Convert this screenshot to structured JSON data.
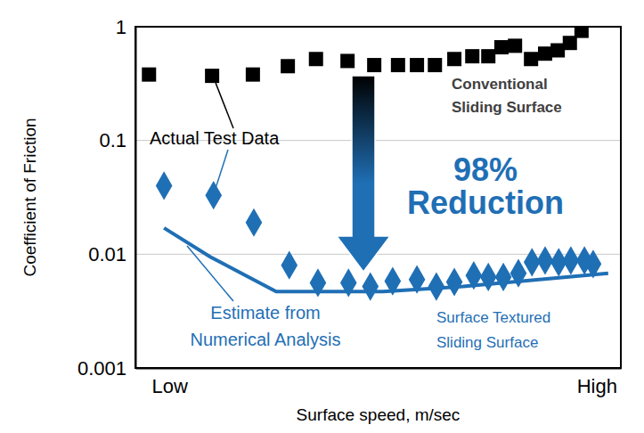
{
  "chart_data": {
    "type": "scatter",
    "x_label": "Surface speed, m/sec",
    "y_label": "Coefficient of Friction",
    "xlim": [
      0,
      100
    ],
    "xticks": [
      {
        "value": 7,
        "label": "Low"
      },
      {
        "value": 95,
        "label": "High"
      }
    ],
    "ylim": [
      0.001,
      1
    ],
    "yticks": [
      0.001,
      0.01,
      0.1,
      1
    ],
    "log": "y",
    "grid": true,
    "series": [
      {
        "type": "scatter",
        "color": "#000000",
        "marker": "square",
        "x": [
          2.8,
          15.8,
          24.2,
          31.4,
          37.2,
          43.7,
          49.2,
          54.1,
          58,
          61.7,
          65.7,
          69.4,
          72.7,
          75.4,
          78.2,
          81.5,
          84.4,
          87,
          89.5,
          91.9
        ],
        "values": [
          0.38,
          0.37,
          0.38,
          0.45,
          0.52,
          0.5,
          0.46,
          0.46,
          0.46,
          0.46,
          0.52,
          0.55,
          0.55,
          0.66,
          0.68,
          0.52,
          0.58,
          0.62,
          0.72,
          0.92
        ]
      },
      {
        "type": "scatter",
        "color": "#1f6fb5",
        "marker": "diamond",
        "x": [
          5.9,
          16.1,
          24.4,
          31.7,
          37.6,
          43.9,
          48.4,
          53,
          58,
          62,
          65.7,
          69.7,
          72.7,
          75.8,
          78.9,
          81.7,
          84.4,
          87.2,
          89.7,
          92.5,
          94.3
        ],
        "values": [
          0.04,
          0.033,
          0.019,
          0.008,
          0.0056,
          0.0056,
          0.0052,
          0.0058,
          0.006,
          0.0052,
          0.0057,
          0.0065,
          0.0063,
          0.0063,
          0.0068,
          0.0085,
          0.0088,
          0.0085,
          0.0088,
          0.0088,
          0.0082
        ]
      },
      {
        "type": "line",
        "color": "#1f6fb5",
        "line_style": "solid",
        "x": [
          5.9,
          15.4,
          29,
          51,
          67.5,
          97.4
        ],
        "values": [
          0.017,
          0.0095,
          0.0047,
          0.0047,
          0.0052,
          0.0068
        ]
      }
    ],
    "annotations": [
      [
        "Actual Test Data"
      ],
      [
        "98%",
        "Reduction"
      ],
      [
        "Conventional",
        "Sliding Surface"
      ],
      [
        "Estimate from",
        "Numerical Analysis"
      ],
      [
        "Surface Textured",
        "Sliding Surface"
      ]
    ]
  }
}
